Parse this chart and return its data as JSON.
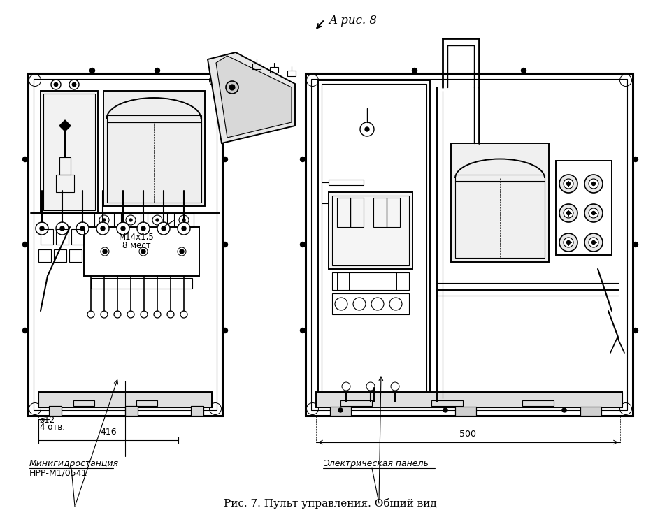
{
  "bg_color": "#ffffff",
  "line_color": "#000000",
  "title": "Рис. 7. Пульт управления. Общий вид",
  "title_fontsize": 11,
  "header_text": "A рис. 8",
  "header_fontsize": 12,
  "label_left_line1": "Минигидростанция",
  "label_left_line2": "НРР-М1/0541",
  "label_right": "Электрическая панель",
  "dim_left_416": "416",
  "dim_left_d12": "ø12",
  "dim_left_holes": "4 отв.",
  "dim_right_500": "500",
  "note_m14": "М14х1,5",
  "note_8mest": "8 мест"
}
